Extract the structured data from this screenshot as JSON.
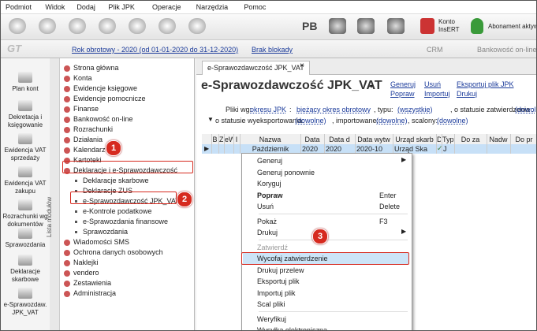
{
  "menu_bar": [
    "Podmiot",
    "Widok",
    "Dodaj",
    "Plik JPK",
    "Operacje",
    "Narzędzia",
    "Pomoc"
  ],
  "toolbar": {
    "pb": "PB",
    "konto": [
      "Konto",
      "InsERT"
    ],
    "abonament": "Abonament aktyw"
  },
  "status_bar": {
    "rok": "Rok obrotowy - 2020  (od 01-01-2020 do 31-12-2020)",
    "blokada": "Brak blokady",
    "crm": "CRM",
    "bank": "Bankowość on-line"
  },
  "side_modules": [
    [
      "Plan kont"
    ],
    [
      "Dekretacja i",
      "księgowanie"
    ],
    [
      "Ewidencja VAT",
      "sprzedaży"
    ],
    [
      "Ewidencja VAT",
      "zakupu"
    ],
    [
      "Rozrachunki wg",
      "dokumentów"
    ],
    [
      "Sprawozdania"
    ],
    [
      "Deklaracje",
      "skarbowe"
    ],
    [
      "e-Sprawozdaw.",
      "JPK_VAT"
    ]
  ],
  "side_label": "Lista modułów",
  "tree": [
    {
      "label": "Strona główna"
    },
    {
      "label": "Konta"
    },
    {
      "label": "Ewidencje księgowe"
    },
    {
      "label": "Ewidencje pomocnicze"
    },
    {
      "label": "Finanse"
    },
    {
      "label": "Bankowość on-line"
    },
    {
      "label": "Rozrachunki"
    },
    {
      "label": "Działania"
    },
    {
      "label": "Kalendarz"
    },
    {
      "label": "Kartoteki"
    },
    {
      "label": "Deklaracje i e-Sprawozdawczość",
      "children": [
        "Deklaracje skarbowe",
        "Deklaracje ZUS",
        "e-Sprawozdawczość JPK_VAT",
        "e-Kontrole podatkowe",
        "e-Sprawozdania finansowe",
        "Sprawozdania"
      ]
    },
    {
      "label": "Wiadomości SMS"
    },
    {
      "label": "Ochrona danych osobowych"
    },
    {
      "label": "Naklejki"
    },
    {
      "label": "vendero"
    },
    {
      "label": "Zestawienia"
    },
    {
      "label": "Administracja"
    }
  ],
  "tab": "e-Sprawozdawczość JPK_VAT",
  "header": {
    "title": "e-Sprawozdawczość JPK_VAT",
    "actions": [
      [
        "Generuj",
        "Usuń",
        "Eksportuj plik JPK"
      ],
      [
        "Popraw",
        "Importuj",
        "Drukuj"
      ]
    ]
  },
  "filters": [
    [
      "Pliki wg:",
      "okresu JPK",
      ":",
      "bieżący okres obrotowy",
      ", typu:",
      "(wszystkie)",
      ", o statusie zatwierdzenia :",
      "(dowol"
    ],
    [
      "o statusie wyeksportowania:",
      "(dowolne)",
      ", importowane:",
      "(dowolne)",
      ", scalony:",
      "(dowolne)"
    ]
  ],
  "table": {
    "columns": [
      "B",
      "Z",
      "eW",
      "I",
      "Nazwa",
      "Data",
      "Data d",
      "Data wytw",
      "Urząd skarb",
      "D",
      "Typ",
      "Do za",
      "Nadw",
      "Do pr"
    ],
    "rows": [
      [
        null,
        null,
        null,
        null,
        "Październik",
        "2020",
        "2020",
        "2020-10",
        "Urząd Ska",
        null,
        "J",
        null,
        null,
        null
      ]
    ]
  },
  "context_menu": [
    {
      "label": "Generuj",
      "submenu": true
    },
    {
      "label": "Generuj ponownie"
    },
    {
      "label": "Koryguj"
    },
    {
      "label": "Popraw",
      "shortcut": "Enter",
      "bold": true
    },
    {
      "label": "Usuń",
      "shortcut": "Delete"
    },
    {
      "label": "Pokaż",
      "shortcut": "F3",
      "separator_before": true
    },
    {
      "label": "Drukuj",
      "submenu": true
    },
    {
      "label": "Zatwierdź",
      "disabled": true,
      "separator_before": true
    },
    {
      "label": "Wycofaj zatwierdzenie",
      "highlighted": true
    },
    {
      "label": "Drukuj przelew"
    },
    {
      "label": "Eksportuj plik"
    },
    {
      "label": "Importuj plik"
    },
    {
      "label": "Scal pliki"
    },
    {
      "label": "Weryfikuj",
      "separator_before": true
    },
    {
      "label": "Wysyłka elektroniczna"
    }
  ],
  "annotations": [
    "1",
    "2",
    "3"
  ]
}
